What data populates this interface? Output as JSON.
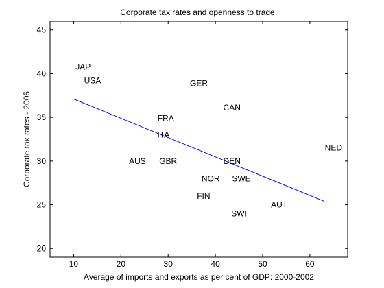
{
  "chart_data": {
    "type": "scatter",
    "title": "Corporate tax rates and openness to trade",
    "xlabel": "Average of imports and exports as per cent of GDP: 2000-2002",
    "ylabel": "Corporate tax rates - 2005",
    "xlim": [
      5,
      68
    ],
    "ylim": [
      19,
      46
    ],
    "xticks": [
      10,
      20,
      30,
      40,
      50,
      60
    ],
    "yticks": [
      20,
      25,
      30,
      35,
      40,
      45
    ],
    "grid": false,
    "marker": "text-label",
    "points": [
      {
        "label": "JAP",
        "x": 12,
        "y": 40.8
      },
      {
        "label": "USA",
        "x": 14,
        "y": 39.2
      },
      {
        "label": "GER",
        "x": 36.5,
        "y": 38.9
      },
      {
        "label": "CAN",
        "x": 43.5,
        "y": 36.1
      },
      {
        "label": "FRA",
        "x": 29.5,
        "y": 34.9
      },
      {
        "label": "ITA",
        "x": 29,
        "y": 33.0
      },
      {
        "label": "NED",
        "x": 65,
        "y": 31.5
      },
      {
        "label": "AUS",
        "x": 23.5,
        "y": 30.0
      },
      {
        "label": "GBR",
        "x": 30,
        "y": 30.0
      },
      {
        "label": "DEN",
        "x": 43.5,
        "y": 30.0
      },
      {
        "label": "NOR",
        "x": 39,
        "y": 28.0
      },
      {
        "label": "SWE",
        "x": 45.5,
        "y": 28.0
      },
      {
        "label": "FIN",
        "x": 37.5,
        "y": 26.0
      },
      {
        "label": "AUT",
        "x": 53.5,
        "y": 25.0
      },
      {
        "label": "SWI",
        "x": 45,
        "y": 24.0
      }
    ],
    "fit_line": {
      "x": [
        10,
        63
      ],
      "y": [
        37.1,
        25.4
      ],
      "color": "#0000ff"
    }
  }
}
